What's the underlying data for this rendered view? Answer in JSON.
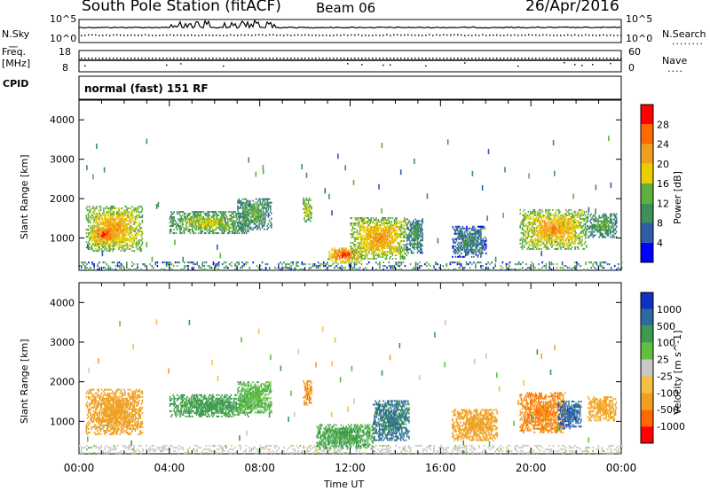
{
  "header": {
    "title": "South Pole Station (fitACF)",
    "beam": "Beam 06",
    "date": "26/Apr/2016"
  },
  "side_labels": {
    "nsky": "N.Sky",
    "nsearch": "N.Search",
    "freq_line1": "Freq.",
    "freq_line2": "[MHz]",
    "nave": "Nave",
    "cpid": "CPID",
    "nsky_tick_hi": "10^5",
    "nsky_tick_lo": "10^0",
    "freq_tick_hi": "18",
    "freq_tick_lo": "8",
    "nave_tick_hi": "60",
    "nave_tick_lo": "0"
  },
  "cpid_text": "normal (fast) 151 RF",
  "chart_data": [
    {
      "type": "heatmap",
      "name": "power",
      "ylabel": "Slant Range [km]",
      "xlabel": "Time UT",
      "xlim": [
        0,
        24
      ],
      "ylim": [
        180,
        4500
      ],
      "yticks": [
        1000,
        2000,
        3000,
        4000
      ],
      "xticklabels": [
        "00:00",
        "04:00",
        "08:00",
        "12:00",
        "16:00",
        "20:00",
        "00:00"
      ],
      "colorbar": {
        "label": "Power [dB]",
        "range": [
          0,
          32
        ],
        "ticks": [
          "4",
          "8",
          "12",
          "16",
          "20",
          "24",
          "28"
        ],
        "colors": [
          "#0000ff",
          "#2e5fa6",
          "#3f8f5a",
          "#60b040",
          "#e8d000",
          "#f0a020",
          "#ff6a00",
          "#ff0000"
        ]
      },
      "echo_regions": [
        {
          "t0": 0.3,
          "t1": 2.8,
          "r0": 650,
          "r1": 1800,
          "level": 24
        },
        {
          "t0": 0.5,
          "t1": 1.7,
          "r0": 850,
          "r1": 1300,
          "level": 30
        },
        {
          "t0": 4.0,
          "t1": 7.5,
          "r0": 1100,
          "r1": 1650,
          "level": 18
        },
        {
          "t0": 7.0,
          "t1": 8.5,
          "r0": 1200,
          "r1": 2000,
          "level": 14
        },
        {
          "t0": 9.9,
          "t1": 10.3,
          "r0": 1400,
          "r1": 2000,
          "level": 20
        },
        {
          "t0": 11.0,
          "t1": 12.5,
          "r0": 350,
          "r1": 750,
          "level": 30
        },
        {
          "t0": 12.0,
          "t1": 14.5,
          "r0": 450,
          "r1": 1500,
          "level": 24
        },
        {
          "t0": 14.5,
          "t1": 15.2,
          "r0": 600,
          "r1": 1500,
          "level": 12
        },
        {
          "t0": 16.5,
          "t1": 18.0,
          "r0": 500,
          "r1": 1300,
          "level": 10
        },
        {
          "t0": 19.5,
          "t1": 22.5,
          "r0": 700,
          "r1": 1700,
          "level": 24
        },
        {
          "t0": 22.5,
          "t1": 23.8,
          "r0": 1000,
          "r1": 1600,
          "level": 14
        }
      ]
    },
    {
      "type": "heatmap",
      "name": "velocity",
      "ylabel": "Slant Range [km]",
      "xlabel": "Time UT",
      "xlim": [
        0,
        24
      ],
      "ylim": [
        180,
        4500
      ],
      "yticks": [
        1000,
        2000,
        3000,
        4000
      ],
      "xticklabels": [
        "00:00",
        "04:00",
        "08:00",
        "12:00",
        "16:00",
        "20:00",
        "00:00"
      ],
      "colorbar": {
        "label": "Velocity [m s^-1]",
        "ticks": [
          "-1000",
          "-500",
          "-100",
          "-25",
          "25",
          "100",
          "500",
          "1000"
        ],
        "colors": [
          "#ff0000",
          "#ff6a00",
          "#f0a020",
          "#f5c040",
          "#c8c8c8",
          "#60c040",
          "#3c9a50",
          "#2e6aa0",
          "#1030c0"
        ]
      },
      "echo_regions": [
        {
          "t0": 0.3,
          "t1": 2.8,
          "r0": 650,
          "r1": 1800,
          "vel": -300
        },
        {
          "t0": 4.0,
          "t1": 7.5,
          "r0": 1100,
          "r1": 1650,
          "vel": 150
        },
        {
          "t0": 7.0,
          "t1": 8.5,
          "r0": 1200,
          "r1": 2000,
          "vel": 80
        },
        {
          "t0": 9.9,
          "t1": 10.3,
          "r0": 1400,
          "r1": 2000,
          "vel": -400
        },
        {
          "t0": 10.5,
          "t1": 13.0,
          "r0": 300,
          "r1": 900,
          "vel": 120
        },
        {
          "t0": 13.0,
          "t1": 14.6,
          "r0": 500,
          "r1": 1500,
          "vel": 600
        },
        {
          "t0": 16.5,
          "t1": 18.5,
          "r0": 500,
          "r1": 1300,
          "vel": -200
        },
        {
          "t0": 19.5,
          "t1": 21.5,
          "r0": 700,
          "r1": 1700,
          "vel": -500
        },
        {
          "t0": 21.2,
          "t1": 22.2,
          "r0": 800,
          "r1": 1500,
          "vel": 800
        },
        {
          "t0": 22.5,
          "t1": 23.8,
          "r0": 1000,
          "r1": 1600,
          "vel": -150
        }
      ]
    }
  ]
}
